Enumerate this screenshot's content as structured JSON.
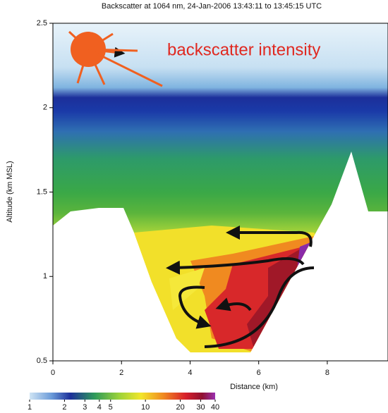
{
  "chart_data": {
    "type": "image",
    "title": "Backscatter at 1064 nm, 24-Jan-2006 13:43:11 to 13:45:15 UTC",
    "x_label": "Distance (km)",
    "y_label": "Altitude (km MSL)",
    "annotation": "backscatter intensity",
    "xlim": [
      0,
      9.77
    ],
    "xticks": [
      0,
      2,
      4,
      6,
      8
    ],
    "ylim": [
      0.5,
      2.5
    ],
    "yticks": [
      0.5,
      1,
      1.5,
      2,
      2.5
    ],
    "colorbar": {
      "scale": "log",
      "lim": [
        1,
        40
      ],
      "ticks": [
        1,
        2,
        3,
        4,
        5,
        10,
        20,
        30,
        40
      ]
    }
  }
}
